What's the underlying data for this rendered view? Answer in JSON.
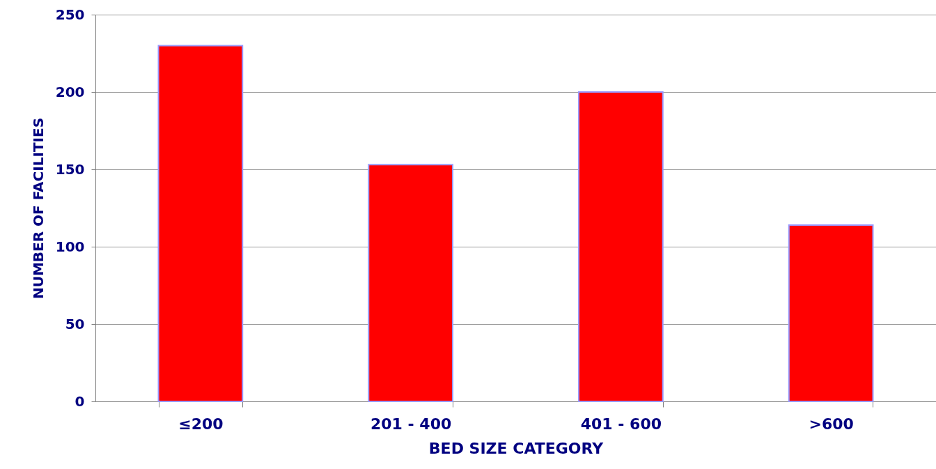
{
  "chart_data": {
    "type": "bar",
    "xlabel": "BED SIZE CATEGORY",
    "ylabel": "NUMBER OF FACILITIES",
    "categories": [
      "≤200",
      "201 - 400",
      "401 - 600",
      ">600"
    ],
    "values": [
      230,
      153,
      200,
      114
    ],
    "color": "#ff0000",
    "ylim": [
      0,
      250
    ],
    "yticks": [
      0,
      50,
      100,
      150,
      200,
      250
    ],
    "grid": "y"
  }
}
